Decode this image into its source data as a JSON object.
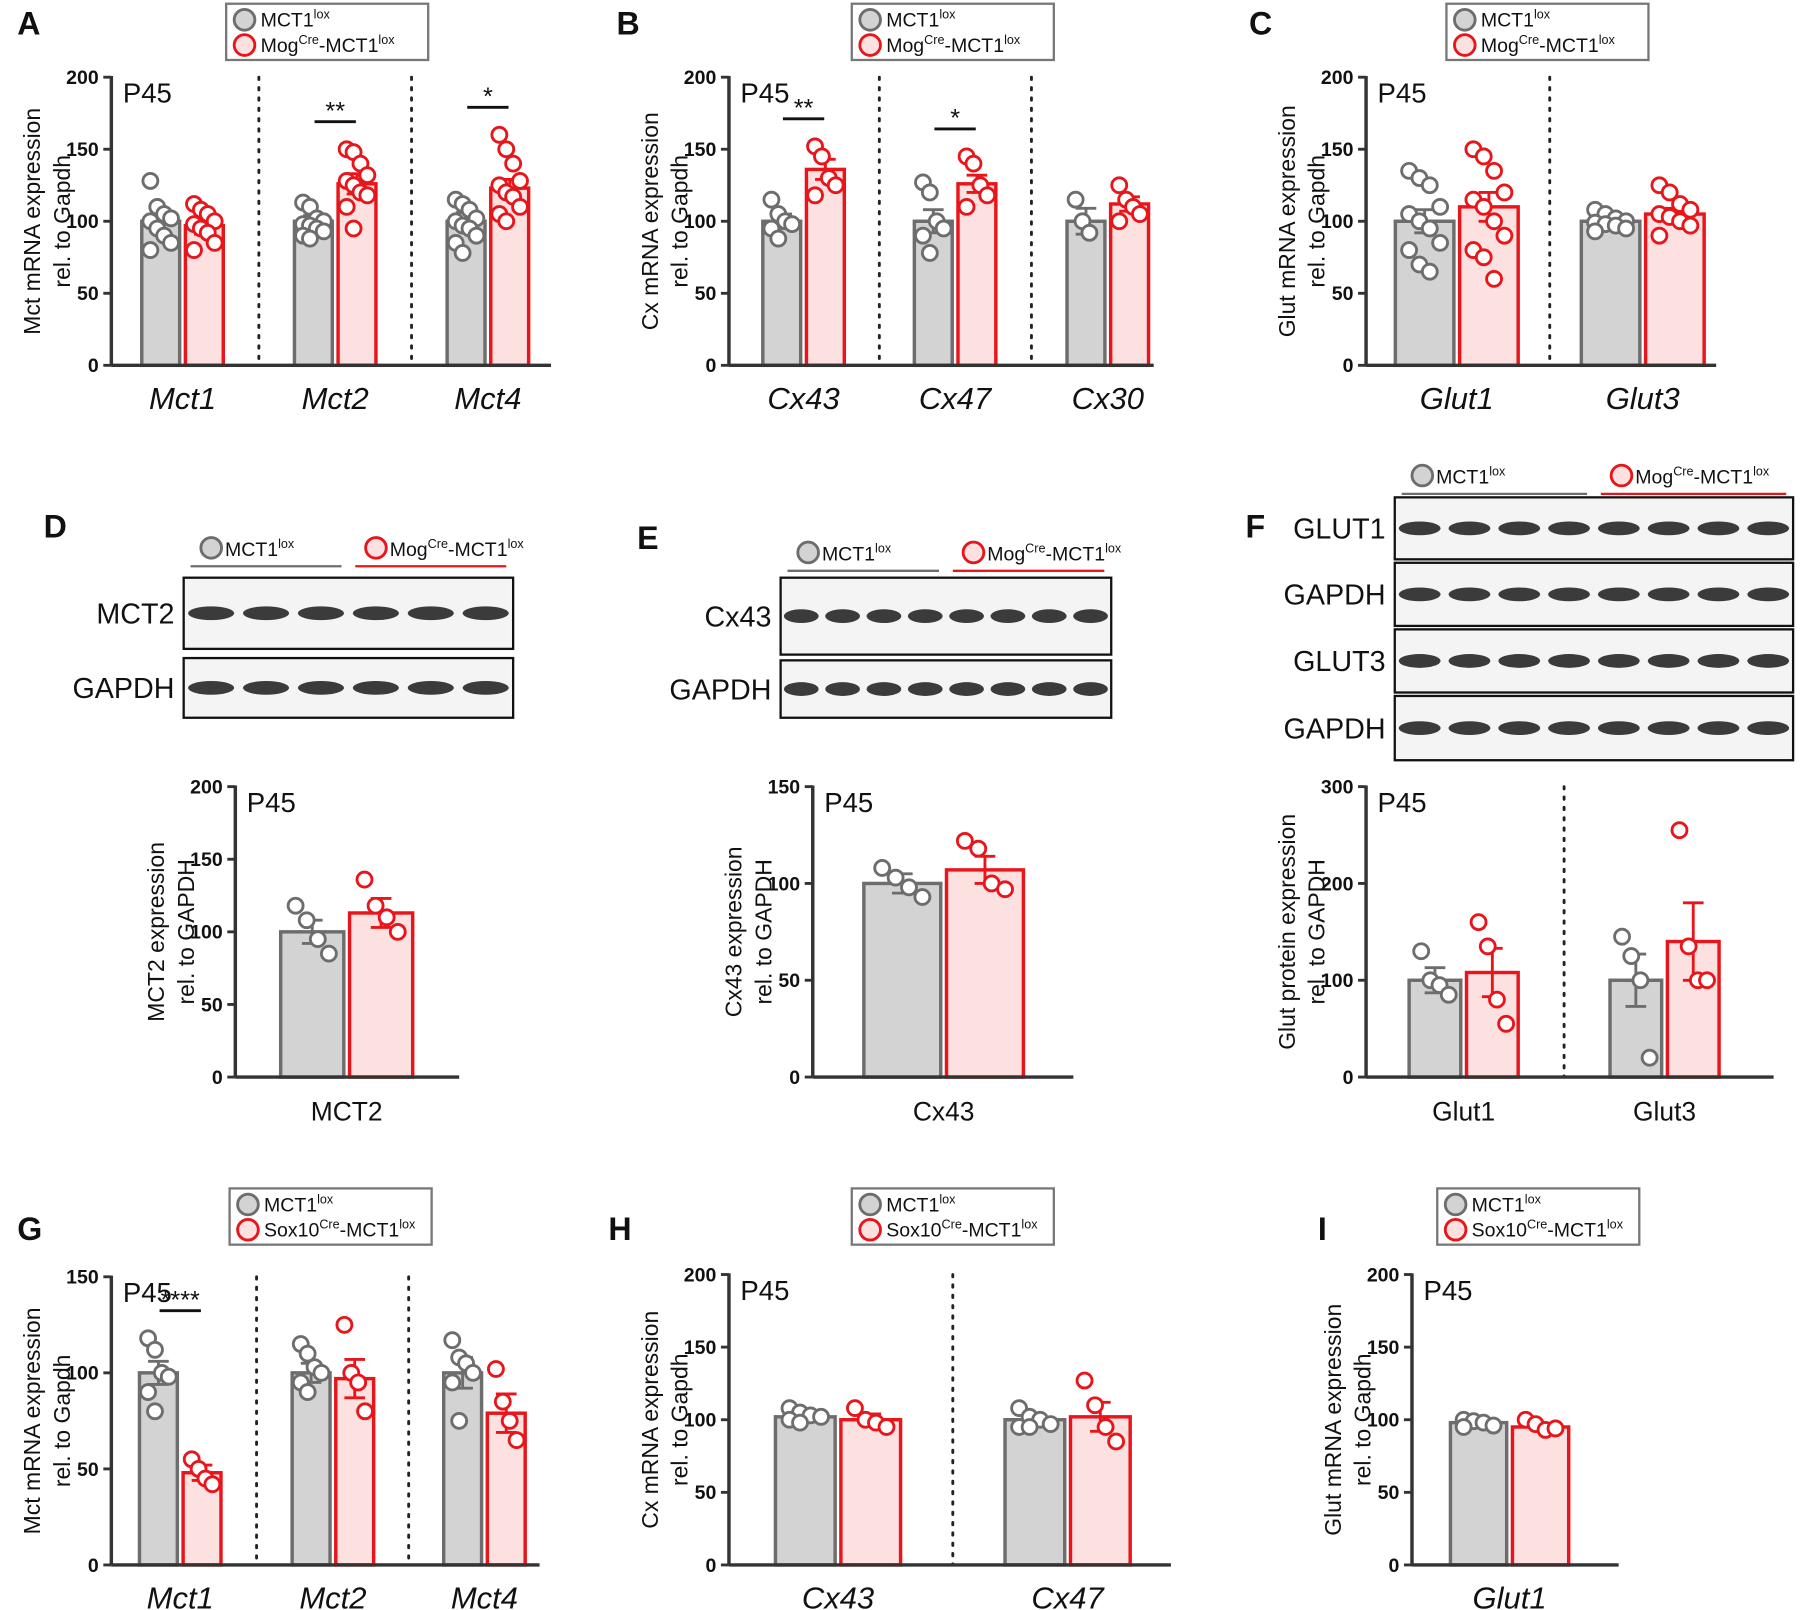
{
  "chart_data": [
    {
      "type": "bar",
      "label": "A",
      "subtitle": "P45",
      "ylabel": [
        "Mct mRNA expression",
        "rel. to Gapdh"
      ],
      "italic_categories": true,
      "dividers": true,
      "categories": [
        "Mct1",
        "Mct2",
        "Mct4"
      ],
      "ylim": [
        0,
        200
      ],
      "yticks": [
        0,
        50,
        100,
        150,
        200
      ],
      "series": [
        {
          "name": [
            "MCT1",
            "lox"
          ],
          "color": "#6d6d6d",
          "fill": "#d3d3d3",
          "values": [
            100,
            100,
            100
          ],
          "errors": [
            7,
            4,
            6
          ],
          "points": [
            [
              128,
              110,
              105,
              102,
              100,
              95,
              90,
              85,
              80
            ],
            [
              113,
              110,
              102,
              100,
              98,
              97,
              95,
              93,
              90,
              88
            ],
            [
              115,
              112,
              108,
              102,
              100,
              97,
              95,
              90,
              85,
              78
            ]
          ]
        },
        {
          "name": [
            "Mog",
            "Cre",
            "-MCT1",
            "lox"
          ],
          "color": "#e8161b",
          "fill": "#fde0e0",
          "values": [
            97,
            126,
            123
          ],
          "errors": [
            6,
            7,
            6
          ],
          "points": [
            [
              112,
              108,
              105,
              100,
              98,
              95,
              92,
              85,
              80
            ],
            [
              150,
              148,
              140,
              132,
              128,
              125,
              120,
              118,
              110,
              95
            ],
            [
              160,
              150,
              140,
              128,
              125,
              120,
              117,
              110,
              105,
              100
            ]
          ]
        }
      ],
      "significance": [
        {
          "category": 1,
          "label": "**"
        },
        {
          "category": 2,
          "label": "*"
        }
      ]
    },
    {
      "type": "bar",
      "label": "B",
      "subtitle": "P45",
      "ylabel": [
        "Cx mRNA expression",
        "rel. to Gapdh"
      ],
      "italic_categories": true,
      "dividers": true,
      "categories": [
        "Cx43",
        "Cx47",
        "Cx30"
      ],
      "ylim": [
        0,
        200
      ],
      "yticks": [
        0,
        50,
        100,
        150,
        200
      ],
      "series": [
        {
          "name": [
            "MCT1",
            "lox"
          ],
          "color": "#6d6d6d",
          "fill": "#d3d3d3",
          "values": [
            100,
            100,
            100
          ],
          "errors": [
            5,
            8,
            9
          ],
          "points": [
            [
              115,
              105,
              100,
              98,
              95,
              88
            ],
            [
              127,
              120,
              100,
              95,
              90,
              78
            ],
            [
              115,
              100,
              92
            ]
          ]
        },
        {
          "name": [
            "Mog",
            "Cre",
            "-MCT1",
            "lox"
          ],
          "color": "#e8161b",
          "fill": "#fde0e0",
          "values": [
            136,
            126,
            112
          ],
          "errors": [
            7,
            6,
            5
          ],
          "points": [
            [
              152,
              145,
              130,
              125,
              118
            ],
            [
              145,
              140,
              125,
              118,
              110
            ],
            [
              125,
              115,
              110,
              105,
              100
            ]
          ]
        }
      ],
      "significance": [
        {
          "category": 0,
          "label": "**"
        },
        {
          "category": 1,
          "label": "*"
        }
      ]
    },
    {
      "type": "bar",
      "label": "C",
      "subtitle": "P45",
      "ylabel": [
        "Glut mRNA expression",
        "rel. to Gapdh"
      ],
      "italic_categories": true,
      "dividers": true,
      "categories": [
        "Glut1",
        "Glut3"
      ],
      "ylim": [
        0,
        200
      ],
      "yticks": [
        0,
        50,
        100,
        150,
        200
      ],
      "series": [
        {
          "name": [
            "MCT1",
            "lox"
          ],
          "color": "#6d6d6d",
          "fill": "#d3d3d3",
          "values": [
            100,
            100
          ],
          "errors": [
            8,
            3
          ],
          "points": [
            [
              135,
              130,
              125,
              110,
              105,
              100,
              95,
              85,
              80,
              70,
              65
            ],
            [
              108,
              105,
              102,
              100,
              99,
              98,
              97,
              95,
              93
            ]
          ]
        },
        {
          "name": [
            "Mog",
            "Cre",
            "-MCT1",
            "lox"
          ],
          "color": "#e8161b",
          "fill": "#fde0e0",
          "values": [
            110,
            105
          ],
          "errors": [
            10,
            4
          ],
          "points": [
            [
              150,
              145,
              135,
              120,
              115,
              110,
              100,
              90,
              80,
              75,
              60
            ],
            [
              125,
              120,
              112,
              108,
              105,
              103,
              100,
              97,
              90
            ]
          ]
        }
      ],
      "significance": []
    },
    {
      "type": "bar",
      "subtitle": "P45",
      "ylabel": [
        "MCT2 expression",
        "rel. to GAPDH"
      ],
      "italic_categories": false,
      "dividers": false,
      "categories": [
        "MCT2"
      ],
      "ylim": [
        0,
        200
      ],
      "yticks": [
        0,
        50,
        100,
        150,
        200
      ],
      "series": [
        {
          "color": "#6d6d6d",
          "fill": "#d3d3d3",
          "values": [
            100
          ],
          "errors": [
            8
          ],
          "points": [
            [
              118,
              108,
              95,
              85
            ]
          ]
        },
        {
          "color": "#e8161b",
          "fill": "#fde0e0",
          "values": [
            113
          ],
          "errors": [
            10
          ],
          "points": [
            [
              136,
              118,
              110,
              100
            ]
          ]
        }
      ],
      "significance": []
    },
    {
      "type": "bar",
      "subtitle": "P45",
      "ylabel": [
        "Cx43 expression",
        "rel. to GAPDH"
      ],
      "italic_categories": false,
      "dividers": false,
      "categories": [
        "Cx43"
      ],
      "ylim": [
        0,
        150
      ],
      "yticks": [
        0,
        50,
        100,
        150
      ],
      "series": [
        {
          "color": "#6d6d6d",
          "fill": "#d3d3d3",
          "values": [
            100
          ],
          "errors": [
            5
          ],
          "points": [
            [
              108,
              103,
              98,
              93
            ]
          ]
        },
        {
          "color": "#e8161b",
          "fill": "#fde0e0",
          "values": [
            107
          ],
          "errors": [
            7
          ],
          "points": [
            [
              122,
              118,
              100,
              97
            ]
          ]
        }
      ],
      "significance": []
    },
    {
      "type": "bar",
      "subtitle": "P45",
      "ylabel": [
        "Glut protein expression",
        "rel. to GAPDH"
      ],
      "italic_categories": false,
      "dividers": true,
      "categories": [
        "Glut1",
        "Glut3"
      ],
      "ylim": [
        0,
        300
      ],
      "yticks": [
        0,
        100,
        200,
        300
      ],
      "series": [
        {
          "color": "#6d6d6d",
          "fill": "#d3d3d3",
          "values": [
            100,
            100
          ],
          "errors": [
            13,
            27
          ],
          "points": [
            [
              130,
              100,
              95,
              85
            ],
            [
              145,
              125,
              100,
              20
            ]
          ]
        },
        {
          "color": "#e8161b",
          "fill": "#fde0e0",
          "values": [
            108,
            140
          ],
          "errors": [
            25,
            40
          ],
          "points": [
            [
              160,
              135,
              80,
              55
            ],
            [
              255,
              135,
              100,
              100
            ]
          ]
        }
      ],
      "significance": []
    },
    {
      "type": "bar",
      "label": "G",
      "subtitle": "P45",
      "ylabel": [
        "Mct mRNA expression",
        "rel. to Gapdh"
      ],
      "italic_categories": true,
      "dividers": true,
      "categories": [
        "Mct1",
        "Mct2",
        "Mct4"
      ],
      "ylim": [
        0,
        150
      ],
      "yticks": [
        0,
        50,
        100,
        150
      ],
      "series": [
        {
          "name": [
            "MCT1",
            "lox"
          ],
          "color": "#6d6d6d",
          "fill": "#d3d3d3",
          "values": [
            100,
            100,
            100
          ],
          "errors": [
            6,
            5,
            8
          ],
          "points": [
            [
              118,
              112,
              100,
              98,
              90,
              80
            ],
            [
              115,
              110,
              103,
              100,
              95,
              90
            ],
            [
              117,
              108,
              105,
              100,
              95,
              75
            ]
          ]
        },
        {
          "name": [
            "Sox10",
            "Cre",
            "-MCT1",
            "lox"
          ],
          "color": "#e8161b",
          "fill": "#fde0e0",
          "values": [
            48,
            97,
            79
          ],
          "errors": [
            4,
            10,
            10
          ],
          "points": [
            [
              55,
              50,
              45,
              42
            ],
            [
              125,
              100,
              95,
              80
            ],
            [
              102,
              85,
              75,
              65
            ]
          ]
        }
      ],
      "significance": [
        {
          "category": 0,
          "label": "****"
        }
      ]
    },
    {
      "type": "bar",
      "label": "H",
      "subtitle": "P45",
      "ylabel": [
        "Cx mRNA expression",
        "rel. to Gapdh"
      ],
      "italic_categories": true,
      "dividers": true,
      "categories": [
        "Cx43",
        "Cx47"
      ],
      "ylim": [
        0,
        200
      ],
      "yticks": [
        0,
        50,
        100,
        150,
        200
      ],
      "series": [
        {
          "name": [
            "MCT1",
            "lox"
          ],
          "color": "#6d6d6d",
          "fill": "#d3d3d3",
          "values": [
            102,
            100
          ],
          "errors": [
            3,
            4
          ],
          "points": [
            [
              108,
              105,
              103,
              102,
              100,
              98
            ],
            [
              108,
              102,
              100,
              97,
              95,
              95
            ]
          ]
        },
        {
          "name": [
            "Sox10",
            "Cre",
            "-MCT1",
            "lox"
          ],
          "color": "#e8161b",
          "fill": "#fde0e0",
          "values": [
            100,
            102
          ],
          "errors": [
            4,
            10
          ],
          "points": [
            [
              108,
              100,
              98,
              95
            ],
            [
              127,
              110,
              95,
              85
            ]
          ]
        }
      ],
      "significance": []
    },
    {
      "type": "bar",
      "label": "I",
      "subtitle": "P45",
      "ylabel": [
        "Glut mRNA expression",
        "rel. to Gapdh"
      ],
      "italic_categories": true,
      "dividers": false,
      "categories": [
        "Glut1"
      ],
      "ylim": [
        0,
        200
      ],
      "yticks": [
        0,
        50,
        100,
        150,
        200
      ],
      "series": [
        {
          "name": [
            "MCT1",
            "lox"
          ],
          "color": "#6d6d6d",
          "fill": "#d3d3d3",
          "values": [
            98
          ],
          "errors": [
            2
          ],
          "points": [
            [
              100,
              99,
              98,
              96,
              95
            ]
          ]
        },
        {
          "name": [
            "Sox10",
            "Cre",
            "-MCT1",
            "lox"
          ],
          "color": "#e8161b",
          "fill": "#fde0e0",
          "values": [
            95
          ],
          "errors": [
            2
          ],
          "points": [
            [
              100,
              97,
              93,
              94
            ]
          ]
        }
      ],
      "significance": []
    }
  ],
  "blots": [
    {
      "label": "D",
      "lanes": 6,
      "groups": [
        {
          "name": [
            "MCT1",
            "lox"
          ],
          "color": "#6d6d6d",
          "fill": "#d3d3d3"
        },
        {
          "name": [
            "Mog",
            "Cre",
            "-MCT1",
            "lox"
          ],
          "color": "#e8161b",
          "fill": "#fde0e0"
        }
      ],
      "rows": [
        "MCT2",
        "GAPDH"
      ]
    },
    {
      "label": "E",
      "lanes": 8,
      "groups": [
        {
          "name": [
            "MCT1",
            "lox"
          ],
          "color": "#6d6d6d",
          "fill": "#d3d3d3"
        },
        {
          "name": [
            "Mog",
            "Cre",
            "-MCT1",
            "lox"
          ],
          "color": "#e8161b",
          "fill": "#fde0e0"
        }
      ],
      "rows": [
        "Cx43",
        "GAPDH"
      ]
    },
    {
      "label": "F",
      "lanes": 8,
      "groups": [
        {
          "name": [
            "MCT1",
            "lox"
          ],
          "color": "#6d6d6d",
          "fill": "#d3d3d3"
        },
        {
          "name": [
            "Mog",
            "Cre",
            "-MCT1",
            "lox"
          ],
          "color": "#e8161b",
          "fill": "#fde0e0"
        }
      ],
      "rows": [
        "GLUT1",
        "GAPDH",
        "GLUT3",
        "GAPDH"
      ]
    }
  ]
}
